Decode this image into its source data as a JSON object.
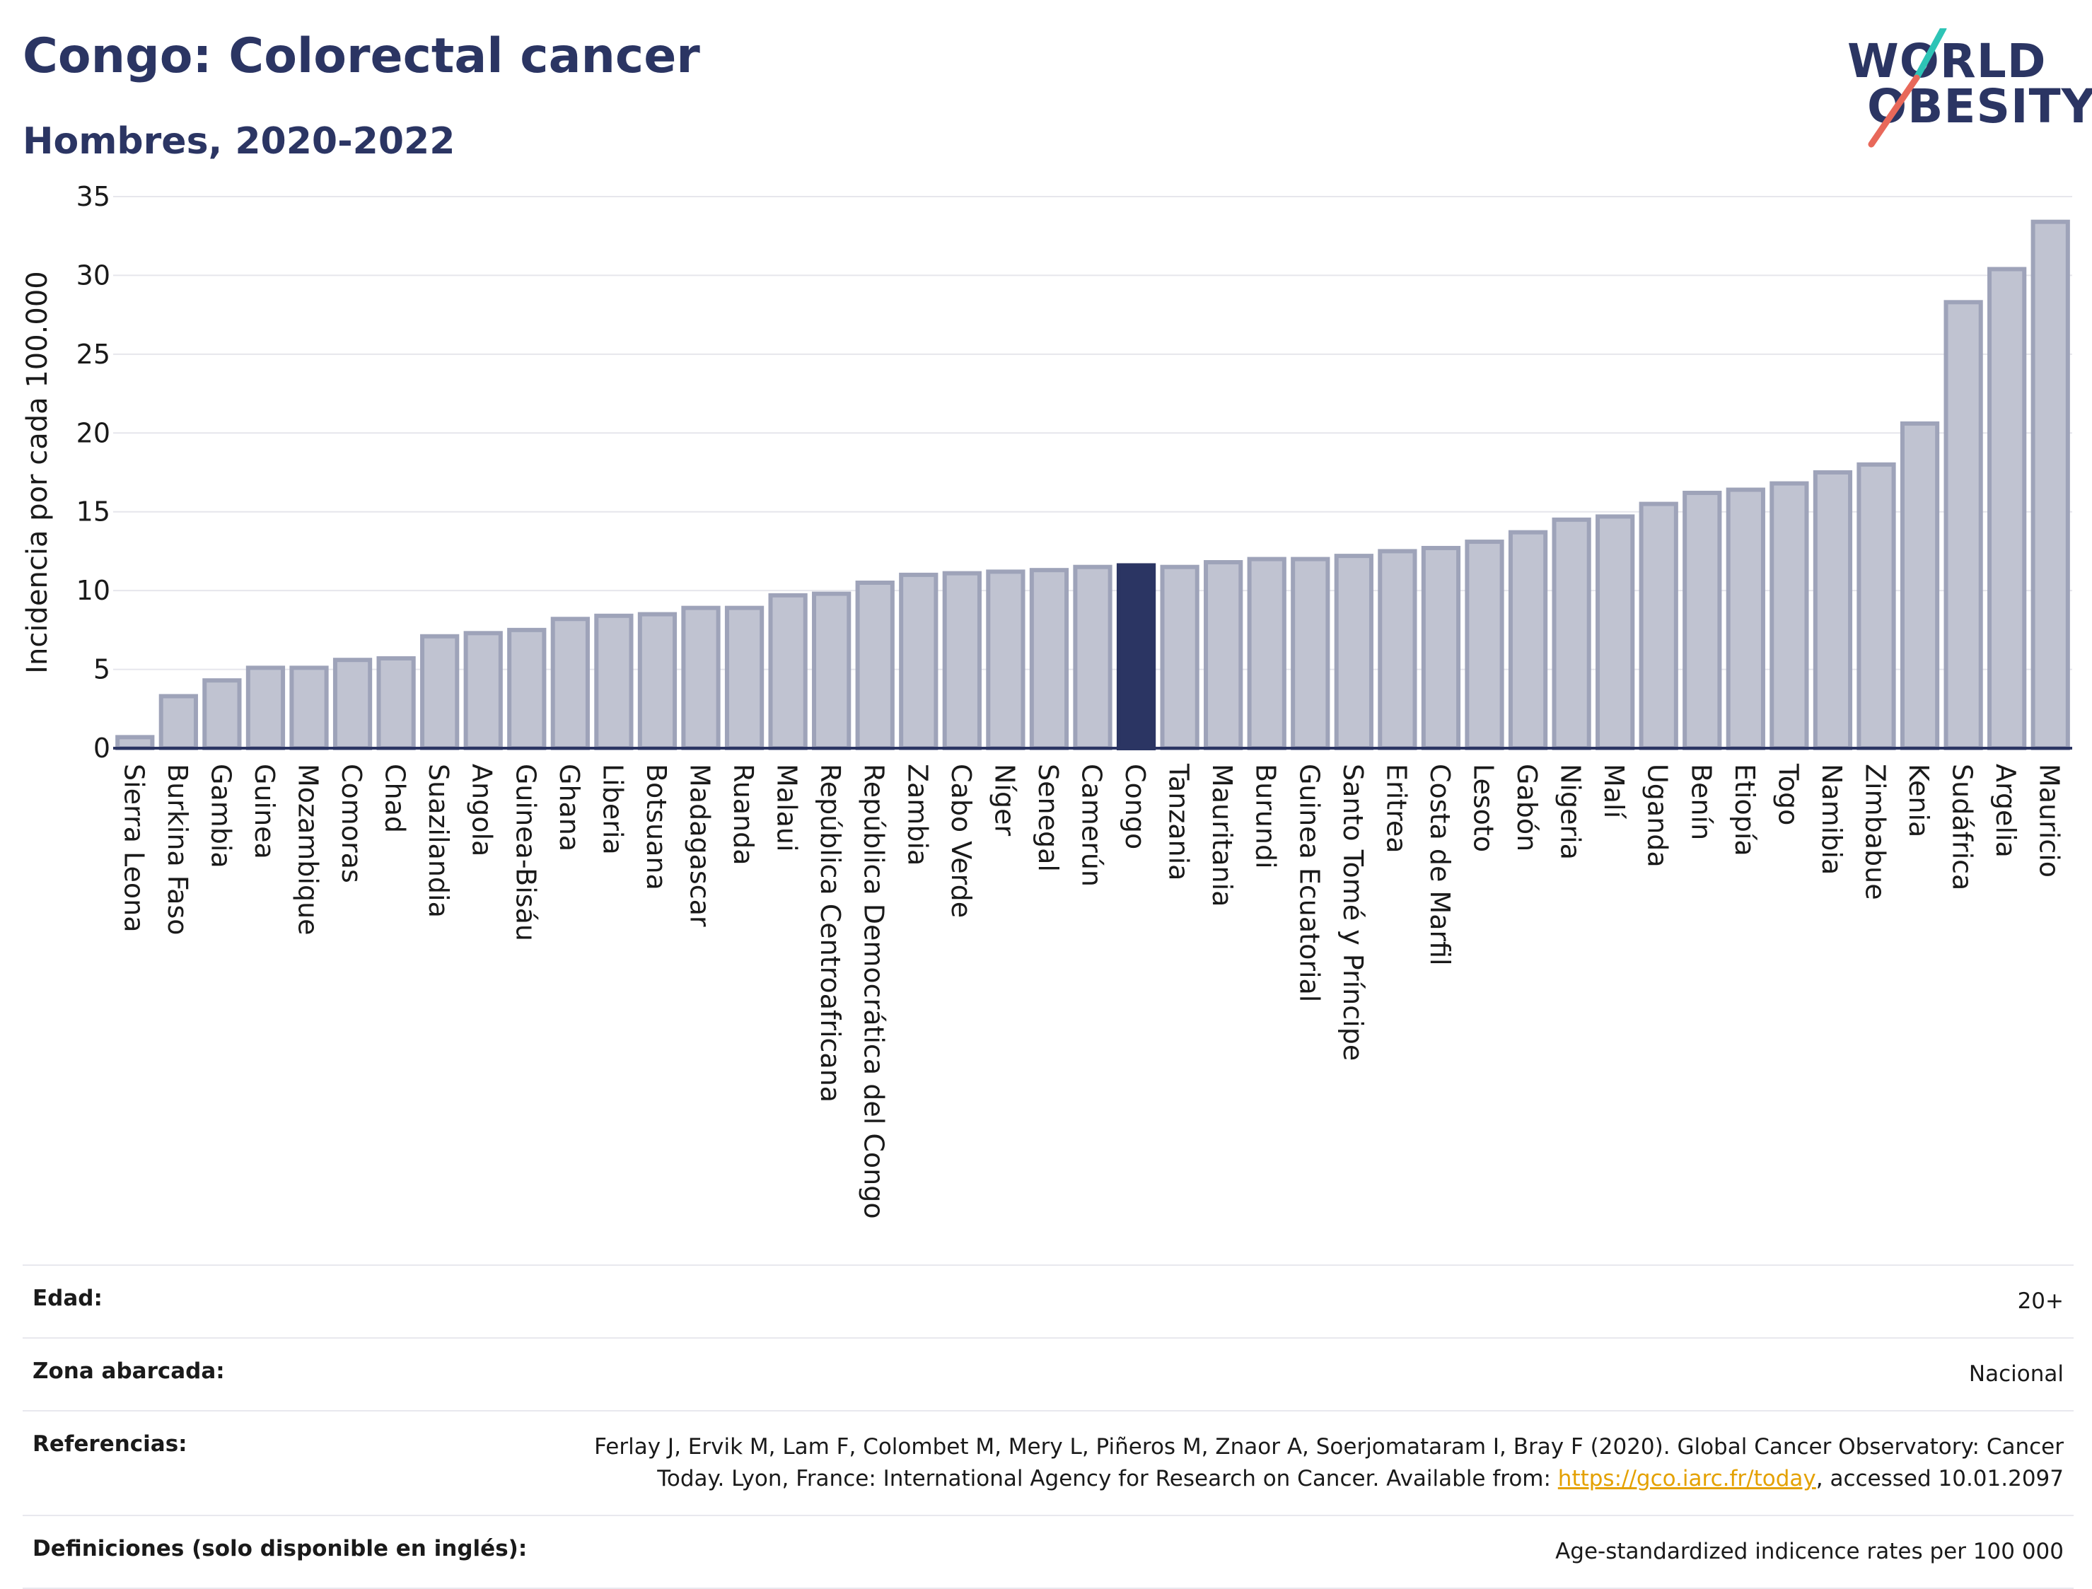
{
  "header": {
    "title": "Congo: Colorectal cancer",
    "subtitle": "Hombres, 2020-2022"
  },
  "logo": {
    "line1": "WORLD",
    "line2": "OBESITY",
    "colors": {
      "text": "#2b3563",
      "slash_top": "#2ec4b6",
      "slash_bottom": "#e8685a"
    }
  },
  "colors": {
    "bar_fill": "#c0c3d1",
    "bar_stroke": "#9ea3b9",
    "highlight": "#2b3563",
    "grid": "#e6e6ec",
    "axis": "#2b3563"
  },
  "chart_data": {
    "type": "bar",
    "title": "Congo: Colorectal cancer",
    "subtitle": "Hombres, 2020-2022",
    "xlabel": "",
    "ylabel": "Incidencia por cada 100.000",
    "ylim": [
      0,
      35
    ],
    "yticks": [
      0,
      5,
      10,
      15,
      20,
      25,
      30,
      35
    ],
    "grid": true,
    "highlight": "Congo",
    "categories": [
      "Sierra Leona",
      "Burkina Faso",
      "Gambia",
      "Guinea",
      "Mozambique",
      "Comoras",
      "Chad",
      "Suazilandia",
      "Angola",
      "Guinea-Bisáu",
      "Ghana",
      "Liberia",
      "Botsuana",
      "Madagascar",
      "Ruanda",
      "Malaui",
      "República Centroafricana",
      "República Democrática del Congo",
      "Zambia",
      "Cabo Verde",
      "Níger",
      "Senegal",
      "Camerún",
      "Congo",
      "Tanzania",
      "Mauritania",
      "Burundi",
      "Guinea Ecuatorial",
      "Santo Tomé y Príncipe",
      "Eritrea",
      "Costa de Marfil",
      "Lesoto",
      "Gabón",
      "Nigeria",
      "Malí",
      "Uganda",
      "Benín",
      "Etiopía",
      "Togo",
      "Namibia",
      "Zimbabue",
      "Kenia",
      "Sudáfrica",
      "Argelia",
      "Mauricio"
    ],
    "values": [
      0.7,
      3.3,
      4.3,
      5.1,
      5.1,
      5.6,
      5.7,
      7.1,
      7.3,
      7.5,
      8.2,
      8.4,
      8.5,
      8.9,
      8.9,
      9.7,
      9.8,
      10.5,
      11.0,
      11.1,
      11.2,
      11.3,
      11.5,
      11.6,
      11.5,
      11.8,
      12.0,
      12.0,
      12.2,
      12.5,
      12.7,
      13.1,
      13.7,
      14.5,
      14.7,
      15.5,
      16.2,
      16.4,
      16.8,
      17.5,
      18.0,
      20.6,
      28.3,
      30.4,
      33.4
    ]
  },
  "info": {
    "age_label": "Edad:",
    "age_value": "20+",
    "zone_label": "Zona abarcada:",
    "zone_value": "Nacional",
    "ref_label": "Referencias:",
    "ref_text_1": "Ferlay J, Ervik M, Lam F, Colombet M, Mery L, Piñeros M, Znaor A, Soerjomataram I, Bray F (2020). Global Cancer Observatory: Cancer",
    "ref_text_2": "Today. Lyon, France: International Agency for Research on Cancer. Available from: ",
    "ref_link": "https://gco.iarc.fr/today",
    "ref_text_3": ", accessed 10.01.2097",
    "def_label": "Definiciones (solo disponible en inglés):",
    "def_value": "Age-standardized indicence rates per 100 000"
  }
}
